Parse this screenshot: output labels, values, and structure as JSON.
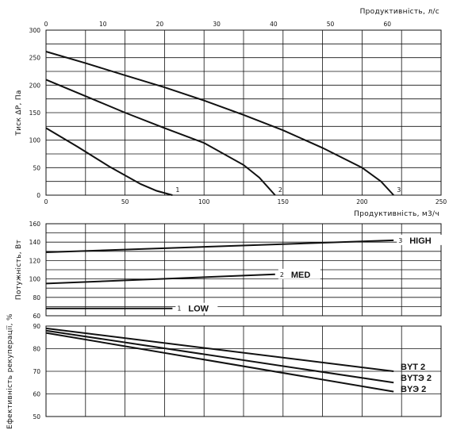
{
  "chart_data": [
    {
      "type": "line",
      "ylabel": "Тиск ΔР, Па",
      "xlabel_bottom": "Продуктивність, м3/ч",
      "xlabel_top": "Продуктивність, л/с",
      "x_bottom_ticks": [
        0,
        50,
        100,
        150,
        200,
        250
      ],
      "x_top_ticks": [
        0,
        10,
        20,
        30,
        40,
        50,
        60
      ],
      "xlim": [
        0,
        250
      ],
      "y_ticks": [
        0,
        50,
        100,
        150,
        200,
        250,
        300
      ],
      "ylim": [
        0,
        300
      ],
      "grid": true,
      "series": [
        {
          "name": "1",
          "x": [
            0,
            20,
            40,
            60,
            70,
            80
          ],
          "y": [
            122,
            88,
            52,
            20,
            8,
            0
          ]
        },
        {
          "name": "2",
          "x": [
            0,
            25,
            50,
            75,
            100,
            125,
            135,
            145
          ],
          "y": [
            210,
            180,
            150,
            122,
            95,
            55,
            32,
            0
          ]
        },
        {
          "name": "3",
          "x": [
            0,
            25,
            50,
            75,
            100,
            125,
            150,
            175,
            200,
            212,
            220
          ],
          "y": [
            261,
            240,
            218,
            196,
            172,
            146,
            118,
            86,
            50,
            25,
            0
          ]
        }
      ]
    },
    {
      "type": "line",
      "ylabel": "Потужність, Вт",
      "xlim": [
        0,
        250
      ],
      "y_ticks": [
        60,
        80,
        100,
        120,
        140,
        160
      ],
      "ylim": [
        60,
        160
      ],
      "grid": true,
      "series": [
        {
          "name": "1",
          "label": "LOW",
          "x": [
            0,
            80
          ],
          "y": [
            68,
            68
          ]
        },
        {
          "name": "2",
          "label": "MED",
          "x": [
            0,
            145
          ],
          "y": [
            95,
            105
          ]
        },
        {
          "name": "3",
          "label": "HIGH",
          "x": [
            0,
            220
          ],
          "y": [
            129,
            142
          ]
        }
      ]
    },
    {
      "type": "line",
      "ylabel": "Ефективність рекуперації, %",
      "xlim": [
        0,
        250
      ],
      "y_ticks": [
        50,
        60,
        70,
        80,
        90
      ],
      "ylim": [
        50,
        90
      ],
      "grid": true,
      "series": [
        {
          "name": "BYT 2",
          "x": [
            0,
            220
          ],
          "y": [
            89,
            70
          ]
        },
        {
          "name": "BYTЭ 2",
          "x": [
            0,
            220
          ],
          "y": [
            88,
            65
          ]
        },
        {
          "name": "BYЭ 2",
          "x": [
            0,
            220
          ],
          "y": [
            87,
            61
          ]
        }
      ]
    }
  ]
}
